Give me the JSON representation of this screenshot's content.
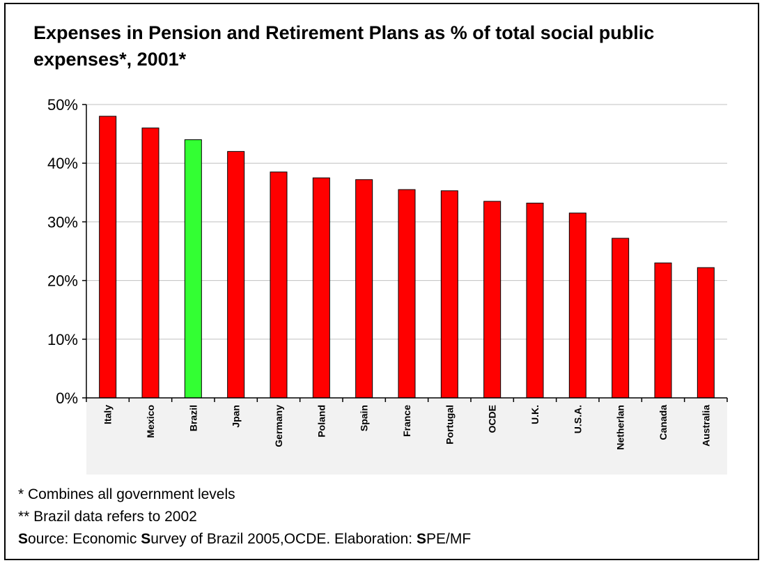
{
  "chart_data": {
    "type": "bar",
    "title": "Expenses in Pension and Retirement Plans as % of total social public expenses*, 2001*",
    "categories": [
      "Italy",
      "Mexico",
      "Brazil",
      "Jpan",
      "Germany",
      "Poland",
      "Spain",
      "France",
      "Portugal",
      "OCDE",
      "U.K.",
      "U.S.A.",
      "Netherlan",
      "Canada",
      "Australia"
    ],
    "values": [
      48,
      46,
      44,
      42,
      38.5,
      37.5,
      37.2,
      35.5,
      35.3,
      33.5,
      33.2,
      31.5,
      27.2,
      23,
      22.2
    ],
    "highlight_index": 2,
    "colors": {
      "bar": "#ff0000",
      "highlight": "#33ff33",
      "outline": "#000000",
      "grid": "#c0c0c0",
      "plot_bg": "#f2f2f2"
    },
    "ylim": [
      0,
      50
    ],
    "yticks": [
      0,
      10,
      20,
      30,
      40,
      50
    ],
    "ytick_labels": [
      "0%",
      "10%",
      "20%",
      "30%",
      "40%",
      "50%"
    ],
    "grid": true,
    "xlabel": "",
    "ylabel": ""
  },
  "notes": {
    "note1": "* Combines all government levels",
    "note2": "** Brazil data refers to 2002",
    "source_s1": "S",
    "source_part1": "ource: Economic ",
    "source_s2": "S",
    "source_part2": "urvey of Brazil 2005,OCDE.  Elaboration: ",
    "source_s3": "S",
    "source_part3": "PE/MF"
  }
}
